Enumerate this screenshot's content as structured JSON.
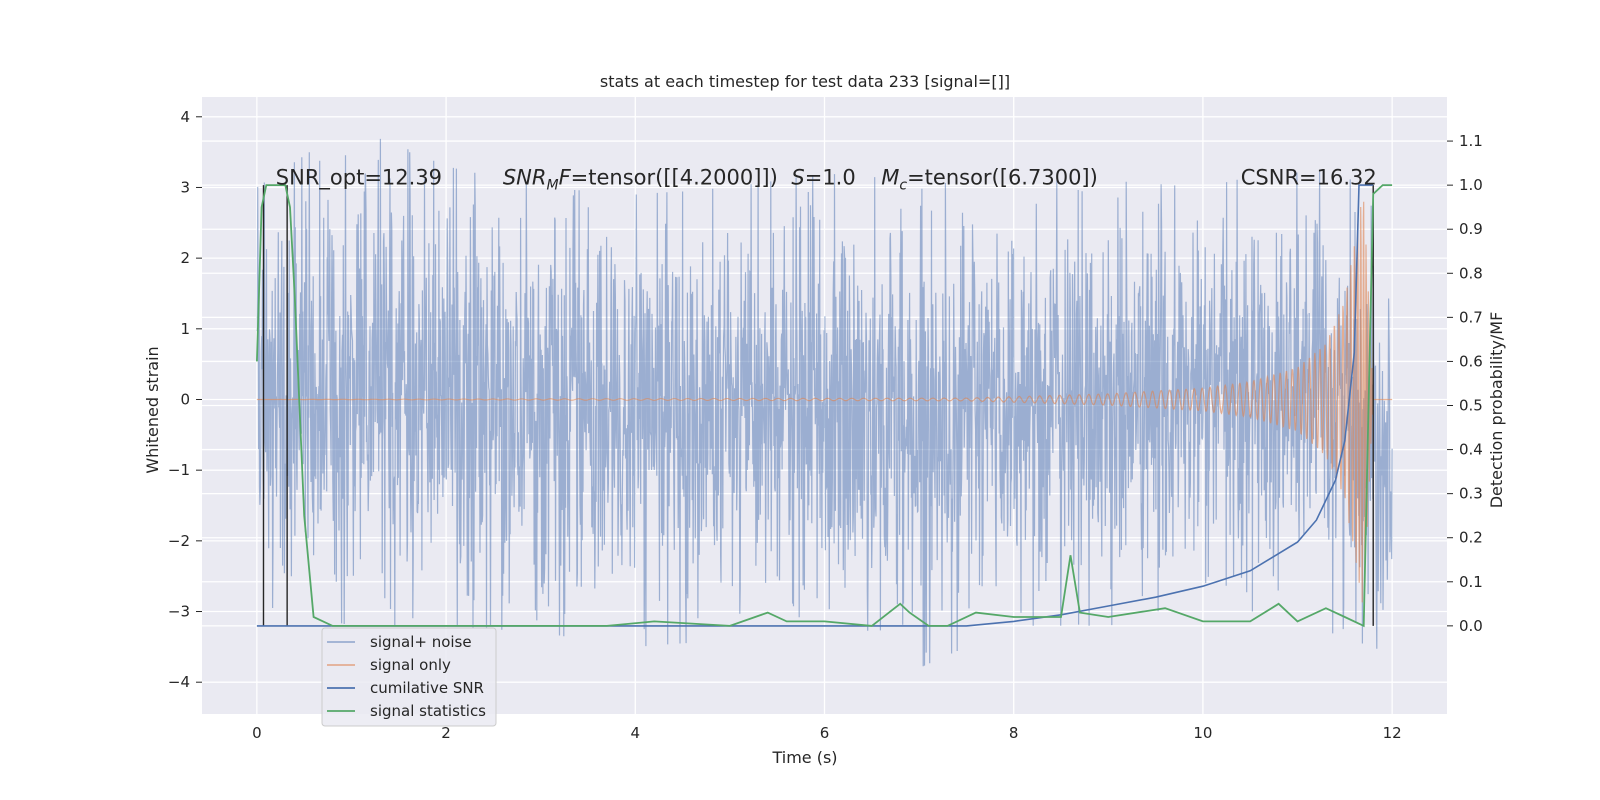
{
  "chart_data": {
    "type": "line",
    "title": "stats at each timestep for test data 233 [signal=[]]",
    "xlabel": "Time (s)",
    "ylabel": "Whitened strain",
    "ylabel_right": "Detection probability/MF",
    "xlim": [
      -0.58,
      12.58
    ],
    "ylim": [
      -4.45,
      4.28
    ],
    "ylim_right": [
      -0.2,
      1.2
    ],
    "xticks": [
      "0",
      "2",
      "4",
      "6",
      "8",
      "10",
      "12"
    ],
    "yticks": [
      "4",
      "3",
      "2",
      "1",
      "0",
      "−1",
      "−2",
      "−3",
      "−4"
    ],
    "yticks_right": [
      "1.1",
      "1.0",
      "0.9",
      "0.8",
      "0.7",
      "0.6",
      "0.5",
      "0.4",
      "0.3",
      "0.2",
      "0.1",
      "0.0"
    ],
    "grid": true,
    "legend_placement": "lower-left",
    "series": [
      {
        "name": "signal+ noise",
        "color": "#4c72b0",
        "axis": "left",
        "style": "dense noisy trace between about -3.6 and 3.9 over 0 to 12 s",
        "envelope_x": [
          0,
          1,
          2,
          3,
          4,
          5,
          6,
          7,
          8,
          9,
          10,
          11,
          11.6,
          12
        ],
        "envelope_hi": [
          3.0,
          3.9,
          3.3,
          3.0,
          2.9,
          3.0,
          3.2,
          3.1,
          3.1,
          3.1,
          3.0,
          3.3,
          3.1,
          2.3
        ],
        "envelope_lo": [
          -2.9,
          -3.2,
          -3.2,
          -3.3,
          -3.5,
          -3.4,
          -3.5,
          -3.8,
          -3.2,
          -3.2,
          -3.0,
          -3.0,
          -3.5,
          -3.6
        ]
      },
      {
        "name": "signal only",
        "color": "#dd8452",
        "axis": "left",
        "style": "chirp growing from 0 near 7.5 s to about ±3.0 at 11.6 s, ending at 11.8 s",
        "x": [
          0,
          7.5,
          9,
          10,
          10.5,
          11,
          11.3,
          11.5,
          11.6,
          11.7,
          11.8,
          12
        ],
        "amplitude": [
          0,
          0.02,
          0.08,
          0.16,
          0.25,
          0.45,
          0.8,
          1.4,
          2.2,
          3.0,
          0,
          0
        ]
      },
      {
        "name": "cumilative SNR",
        "color": "#4c72b0",
        "axis": "right",
        "x": [
          0,
          7.5,
          8,
          8.5,
          9,
          9.5,
          10,
          10.5,
          11,
          11.2,
          11.4,
          11.5,
          11.6,
          11.65,
          11.8
        ],
        "y": [
          0,
          0,
          0.01,
          0.025,
          0.045,
          0.065,
          0.09,
          0.125,
          0.19,
          0.24,
          0.33,
          0.42,
          0.62,
          1.0,
          1.0
        ]
      },
      {
        "name": "signal statistics",
        "color": "#55a868",
        "axis": "right",
        "x": [
          0,
          0.05,
          0.1,
          0.15,
          0.2,
          0.3,
          0.35,
          0.4,
          0.5,
          0.6,
          0.8,
          1.2,
          2.0,
          3.0,
          3.7,
          4.2,
          5.0,
          5.4,
          5.6,
          6.0,
          6.5,
          6.8,
          6.9,
          7.1,
          7.3,
          7.6,
          8.0,
          8.5,
          8.6,
          8.7,
          9.0,
          9.6,
          10.0,
          10.5,
          10.8,
          11.0,
          11.3,
          11.5,
          11.7,
          11.8,
          11.9,
          12.0
        ],
        "y": [
          0.6,
          0.95,
          1.0,
          1.0,
          1.0,
          1.0,
          0.95,
          0.75,
          0.25,
          0.02,
          0.0,
          0.0,
          0.0,
          0.0,
          0.0,
          0.01,
          0.0,
          0.03,
          0.01,
          0.01,
          0.0,
          0.05,
          0.03,
          0.0,
          0.0,
          0.03,
          0.02,
          0.02,
          0.16,
          0.03,
          0.02,
          0.04,
          0.01,
          0.01,
          0.05,
          0.01,
          0.04,
          0.02,
          0.0,
          0.98,
          1.0,
          1.0
        ]
      }
    ],
    "vertical_lines": {
      "color": "#262626",
      "x": [
        0.07,
        0.32,
        11.8
      ]
    },
    "annotations": [
      {
        "text": "SNR_opt=12.39",
        "x": 0.2,
        "y": 3.0,
        "style": "plain"
      },
      {
        "text": "tensor([[4.2000]])",
        "prefix_italic": "SNR",
        "sub": "M",
        "mid_italic": "F",
        "x": 2.6,
        "y": 3.0,
        "style": "math"
      },
      {
        "text": "=1.0",
        "prefix_italic": "S",
        "x": 5.65,
        "y": 3.0,
        "style": "math"
      },
      {
        "text": "=tensor([6.7300])",
        "prefix_italic": "M",
        "sub": "c",
        "x": 6.6,
        "y": 3.0,
        "style": "math"
      },
      {
        "text": "CSNR=16.32",
        "x": 10.4,
        "y": 3.0,
        "style": "plain"
      }
    ]
  }
}
